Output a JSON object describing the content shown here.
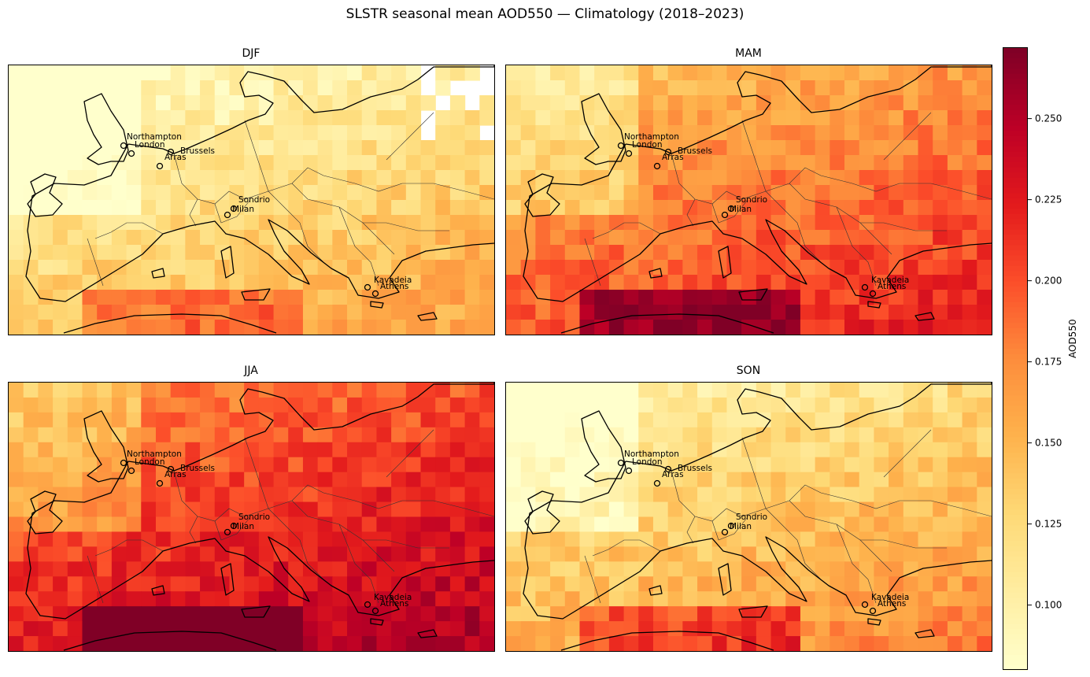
{
  "title": "SLSTR seasonal mean AOD550 — Climatology (2018–2023)",
  "panels": [
    {
      "season": "DJF",
      "base": 0.125,
      "bias": -0.035
    },
    {
      "season": "MAM",
      "base": 0.185,
      "bias": 0.0
    },
    {
      "season": "JJA",
      "base": 0.215,
      "bias": 0.02
    },
    {
      "season": "SON",
      "base": 0.14,
      "bias": -0.025
    }
  ],
  "cities": [
    "Northampton",
    "London",
    "Brussels",
    "Arras",
    "Sondrio",
    "Milan",
    "Kavadeia",
    "Athens"
  ],
  "colorbar": {
    "label": "AOD550",
    "colormap": "YlOrRd",
    "vmin": 0.08,
    "vmax": 0.272,
    "ticks": [
      "0.100",
      "0.125",
      "0.150",
      "0.175",
      "0.200",
      "0.225",
      "0.250"
    ]
  },
  "colors": {
    "coastline": "#000000",
    "borders": "#333333"
  }
}
